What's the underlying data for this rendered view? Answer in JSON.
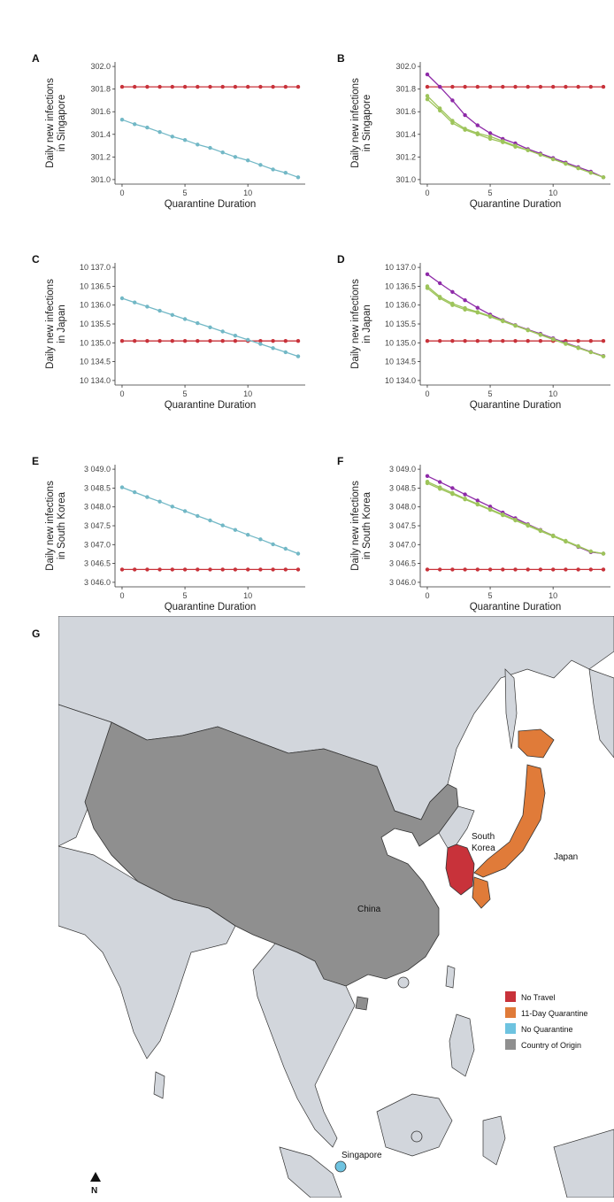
{
  "colors": {
    "no_travel": "#c8323a",
    "quarantine": "#e07b39",
    "no_quarantine": "#6ec3e0",
    "origin": "#8f8f8f",
    "teal_line": "#72b8c6",
    "purple_line": "#8e2aa8",
    "green_line": "#9dc45a",
    "red_line": "#c8323a",
    "land": "#d2d6dc",
    "sea": "#ffffff"
  },
  "chart_data": [
    {
      "panel": "A",
      "type": "line",
      "ylabel_line1": "Daily new infections",
      "ylabel_line2": "in Singapore",
      "xlabel": "Quarantine Duration",
      "xlim": [
        0,
        14
      ],
      "ylim": [
        301.0,
        302.0
      ],
      "xticks": [
        "0",
        "5",
        "10"
      ],
      "xtick_values": [
        0,
        5,
        10
      ],
      "yticks": [
        "301.0",
        "301.2",
        "301.4",
        "301.6",
        "301.8",
        "302.0"
      ],
      "ytick_values": [
        301.0,
        301.2,
        301.4,
        301.6,
        301.8,
        302.0
      ],
      "x": [
        0,
        1,
        2,
        3,
        4,
        5,
        6,
        7,
        8,
        9,
        10,
        11,
        12,
        13,
        14
      ],
      "series": [
        {
          "color_key": "red_line",
          "values": [
            301.82,
            301.82,
            301.82,
            301.82,
            301.82,
            301.82,
            301.82,
            301.82,
            301.82,
            301.82,
            301.82,
            301.82,
            301.82,
            301.82,
            301.82
          ]
        },
        {
          "color_key": "teal_line",
          "values": [
            301.53,
            301.49,
            301.46,
            301.42,
            301.38,
            301.35,
            301.31,
            301.28,
            301.24,
            301.2,
            301.17,
            301.13,
            301.09,
            301.06,
            301.02
          ]
        }
      ]
    },
    {
      "panel": "B",
      "type": "line",
      "ylabel_line1": "Daily new infections",
      "ylabel_line2": "in Singapore",
      "xlabel": "Quarantine Duration",
      "xlim": [
        0,
        14
      ],
      "ylim": [
        301.0,
        302.0
      ],
      "xticks": [
        "0",
        "5",
        "10"
      ],
      "xtick_values": [
        0,
        5,
        10
      ],
      "yticks": [
        "301.0",
        "301.2",
        "301.4",
        "301.6",
        "301.8",
        "302.0"
      ],
      "ytick_values": [
        301.0,
        301.2,
        301.4,
        301.6,
        301.8,
        302.0
      ],
      "x": [
        0,
        1,
        2,
        3,
        4,
        5,
        6,
        7,
        8,
        9,
        10,
        11,
        12,
        13,
        14
      ],
      "series": [
        {
          "color_key": "red_line",
          "values": [
            301.82,
            301.82,
            301.82,
            301.82,
            301.82,
            301.82,
            301.82,
            301.82,
            301.82,
            301.82,
            301.82,
            301.82,
            301.82,
            301.82,
            301.82
          ]
        },
        {
          "color_key": "purple_line",
          "values": [
            301.93,
            301.82,
            301.7,
            301.57,
            301.48,
            301.41,
            301.36,
            301.32,
            301.27,
            301.23,
            301.19,
            301.15,
            301.11,
            301.07,
            301.02
          ]
        },
        {
          "color_key": "green_line",
          "values": [
            301.74,
            301.63,
            301.52,
            301.45,
            301.41,
            301.38,
            301.34,
            301.3,
            301.26,
            301.22,
            301.18,
            301.14,
            301.1,
            301.06,
            301.02
          ]
        },
        {
          "color_key": "green_line",
          "values": [
            301.71,
            301.61,
            301.5,
            301.44,
            301.4,
            301.36,
            301.33,
            301.29,
            301.26,
            301.22,
            301.18,
            301.14,
            301.1,
            301.06,
            301.02
          ]
        }
      ]
    },
    {
      "panel": "C",
      "type": "line",
      "ylabel_line1": "Daily new infections",
      "ylabel_line2": "in Japan",
      "xlabel": "Quarantine Duration",
      "xlim": [
        0,
        14
      ],
      "ylim": [
        10134.0,
        10137.0
      ],
      "xticks": [
        "0",
        "5",
        "10"
      ],
      "xtick_values": [
        0,
        5,
        10
      ],
      "yticks": [
        "10 134.0",
        "10 134.5",
        "10 135.0",
        "10 135.5",
        "10 136.0",
        "10 136.5",
        "10 137.0"
      ],
      "ytick_values": [
        10134.0,
        10134.5,
        10135.0,
        10135.5,
        10136.0,
        10136.5,
        10137.0
      ],
      "x": [
        0,
        1,
        2,
        3,
        4,
        5,
        6,
        7,
        8,
        9,
        10,
        11,
        12,
        13,
        14
      ],
      "series": [
        {
          "color_key": "red_line",
          "values": [
            10135.05,
            10135.05,
            10135.05,
            10135.05,
            10135.05,
            10135.05,
            10135.05,
            10135.05,
            10135.05,
            10135.05,
            10135.05,
            10135.05,
            10135.05,
            10135.05,
            10135.05
          ]
        },
        {
          "color_key": "teal_line",
          "values": [
            10136.18,
            10136.07,
            10135.96,
            10135.85,
            10135.74,
            10135.63,
            10135.52,
            10135.41,
            10135.3,
            10135.19,
            10135.08,
            10134.97,
            10134.86,
            10134.75,
            10134.64
          ]
        }
      ]
    },
    {
      "panel": "D",
      "type": "line",
      "ylabel_line1": "Daily new infections",
      "ylabel_line2": "in Japan",
      "xlabel": "Quarantine Duration",
      "xlim": [
        0,
        14
      ],
      "ylim": [
        10134.0,
        10137.0
      ],
      "xticks": [
        "0",
        "5",
        "10"
      ],
      "xtick_values": [
        0,
        5,
        10
      ],
      "yticks": [
        "10 134.0",
        "10 134.5",
        "10 135.0",
        "10 135.5",
        "10 136.0",
        "10 136.5",
        "10 137.0"
      ],
      "ytick_values": [
        10134.0,
        10134.5,
        10135.0,
        10135.5,
        10136.0,
        10136.5,
        10137.0
      ],
      "x": [
        0,
        1,
        2,
        3,
        4,
        5,
        6,
        7,
        8,
        9,
        10,
        11,
        12,
        13,
        14
      ],
      "series": [
        {
          "color_key": "red_line",
          "values": [
            10135.05,
            10135.05,
            10135.05,
            10135.05,
            10135.05,
            10135.05,
            10135.05,
            10135.05,
            10135.05,
            10135.05,
            10135.05,
            10135.05,
            10135.05,
            10135.05,
            10135.05
          ]
        },
        {
          "color_key": "purple_line",
          "values": [
            10136.82,
            10136.58,
            10136.35,
            10136.13,
            10135.93,
            10135.75,
            10135.6,
            10135.47,
            10135.35,
            10135.24,
            10135.12,
            10135.0,
            10134.88,
            10134.76,
            10134.65
          ]
        },
        {
          "color_key": "green_line",
          "values": [
            10136.5,
            10136.22,
            10136.04,
            10135.92,
            10135.82,
            10135.71,
            10135.59,
            10135.46,
            10135.34,
            10135.22,
            10135.1,
            10134.98,
            10134.87,
            10134.75,
            10134.64
          ]
        },
        {
          "color_key": "green_line",
          "values": [
            10136.45,
            10136.18,
            10136.0,
            10135.88,
            10135.8,
            10135.69,
            10135.57,
            10135.45,
            10135.33,
            10135.21,
            10135.09,
            10134.97,
            10134.86,
            10134.75,
            10134.64
          ]
        }
      ]
    },
    {
      "panel": "E",
      "type": "line",
      "ylabel_line1": "Daily new infections",
      "ylabel_line2": "in South Korea",
      "xlabel": "Quarantine Duration",
      "xlim": [
        0,
        14
      ],
      "ylim": [
        3046.0,
        3049.0
      ],
      "xticks": [
        "0",
        "5",
        "10"
      ],
      "xtick_values": [
        0,
        5,
        10
      ],
      "yticks": [
        "3 046.0",
        "3 046.5",
        "3 047.0",
        "3 047.5",
        "3 048.0",
        "3 048.5",
        "3 049.0"
      ],
      "ytick_values": [
        3046.0,
        3046.5,
        3047.0,
        3047.5,
        3048.0,
        3048.5,
        3049.0
      ],
      "x": [
        0,
        1,
        2,
        3,
        4,
        5,
        6,
        7,
        8,
        9,
        10,
        11,
        12,
        13,
        14
      ],
      "series": [
        {
          "color_key": "red_line",
          "values": [
            3046.34,
            3046.34,
            3046.34,
            3046.34,
            3046.34,
            3046.34,
            3046.34,
            3046.34,
            3046.34,
            3046.34,
            3046.34,
            3046.34,
            3046.34,
            3046.34,
            3046.34
          ]
        },
        {
          "color_key": "teal_line",
          "values": [
            3048.52,
            3048.39,
            3048.26,
            3048.14,
            3048.01,
            3047.89,
            3047.76,
            3047.64,
            3047.51,
            3047.39,
            3047.26,
            3047.14,
            3047.01,
            3046.89,
            3046.76
          ]
        }
      ]
    },
    {
      "panel": "F",
      "type": "line",
      "ylabel_line1": "Daily new infections",
      "ylabel_line2": "in South Korea",
      "xlabel": "Quarantine Duration",
      "xlim": [
        0,
        14
      ],
      "ylim": [
        3046.0,
        3049.0
      ],
      "xticks": [
        "0",
        "5",
        "10"
      ],
      "xtick_values": [
        0,
        5,
        10
      ],
      "yticks": [
        "3 046.0",
        "3 046.5",
        "3 047.0",
        "3 047.5",
        "3 048.0",
        "3 048.5",
        "3 049.0"
      ],
      "ytick_values": [
        3046.0,
        3046.5,
        3047.0,
        3047.5,
        3048.0,
        3048.5,
        3049.0
      ],
      "x": [
        0,
        1,
        2,
        3,
        4,
        5,
        6,
        7,
        8,
        9,
        10,
        11,
        12,
        13,
        14
      ],
      "series": [
        {
          "color_key": "red_line",
          "values": [
            3046.34,
            3046.34,
            3046.34,
            3046.34,
            3046.34,
            3046.34,
            3046.34,
            3046.34,
            3046.34,
            3046.34,
            3046.34,
            3046.34,
            3046.34,
            3046.34,
            3046.34
          ]
        },
        {
          "color_key": "purple_line",
          "values": [
            3048.82,
            3048.66,
            3048.5,
            3048.33,
            3048.17,
            3048.01,
            3047.85,
            3047.7,
            3047.54,
            3047.39,
            3047.24,
            3047.09,
            3046.94,
            3046.8,
            3046.76
          ]
        },
        {
          "color_key": "green_line",
          "values": [
            3048.67,
            3048.52,
            3048.37,
            3048.22,
            3048.08,
            3047.94,
            3047.8,
            3047.66,
            3047.52,
            3047.38,
            3047.24,
            3047.1,
            3046.96,
            3046.82,
            3046.76
          ]
        },
        {
          "color_key": "green_line",
          "values": [
            3048.63,
            3048.48,
            3048.34,
            3048.2,
            3048.06,
            3047.92,
            3047.78,
            3047.64,
            3047.5,
            3047.36,
            3047.22,
            3047.08,
            3046.95,
            3046.82,
            3046.76
          ]
        }
      ]
    }
  ],
  "map": {
    "panel": "G",
    "labels": {
      "china": "China",
      "south_korea_line1": "South",
      "south_korea_line2": "Korea",
      "japan": "Japan",
      "singapore": "Singapore"
    },
    "legend": [
      {
        "label": "No Travel",
        "color_key": "no_travel"
      },
      {
        "label": "11-Day Quarantine",
        "color_key": "quarantine"
      },
      {
        "label": "No Quarantine",
        "color_key": "no_quarantine"
      },
      {
        "label": "Country of Origin",
        "color_key": "origin"
      }
    ],
    "north_label": "N"
  }
}
